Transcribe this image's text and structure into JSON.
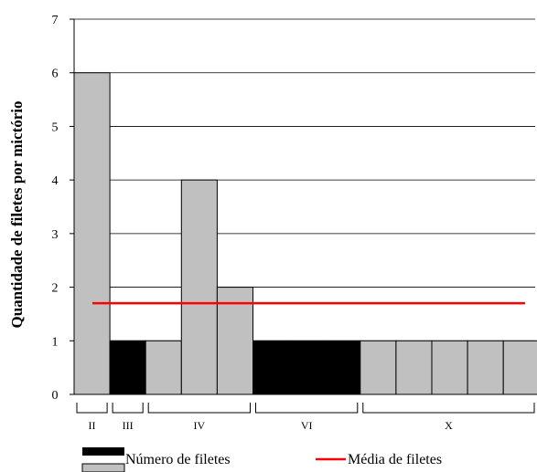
{
  "chart_data": {
    "type": "bar",
    "title": "",
    "xlabel": "",
    "ylabel": "Quantidade de filetes por mictório",
    "ylim": [
      0,
      7
    ],
    "yticks": [
      "0",
      "1",
      "2",
      "3",
      "4",
      "5",
      "6",
      "7"
    ],
    "grid": "horizontal",
    "values": [
      6,
      1,
      1,
      4,
      2,
      1,
      1,
      1,
      1,
      1,
      1,
      1,
      1
    ],
    "fills": [
      "gray",
      "black",
      "gray",
      "gray",
      "gray",
      "black",
      "black",
      "black",
      "gray",
      "gray",
      "gray",
      "gray",
      "gray"
    ],
    "groups": [
      {
        "label": "II",
        "start": 0,
        "end": 0
      },
      {
        "label": "III",
        "start": 1,
        "end": 1
      },
      {
        "label": "IV",
        "start": 2,
        "end": 4
      },
      {
        "label": "VI",
        "start": 5,
        "end": 7
      },
      {
        "label": "X",
        "start": 8,
        "end": 12
      }
    ],
    "mean_value": 1.7,
    "legend": {
      "placement": "bottom",
      "bar_label": "Número de filetes",
      "line_label": "Média de filetes"
    },
    "colors": {
      "gray_bar": "#c0c0c0",
      "black_bar": "#000000",
      "mean_line": "#ff0000",
      "grid": "#000000"
    }
  }
}
